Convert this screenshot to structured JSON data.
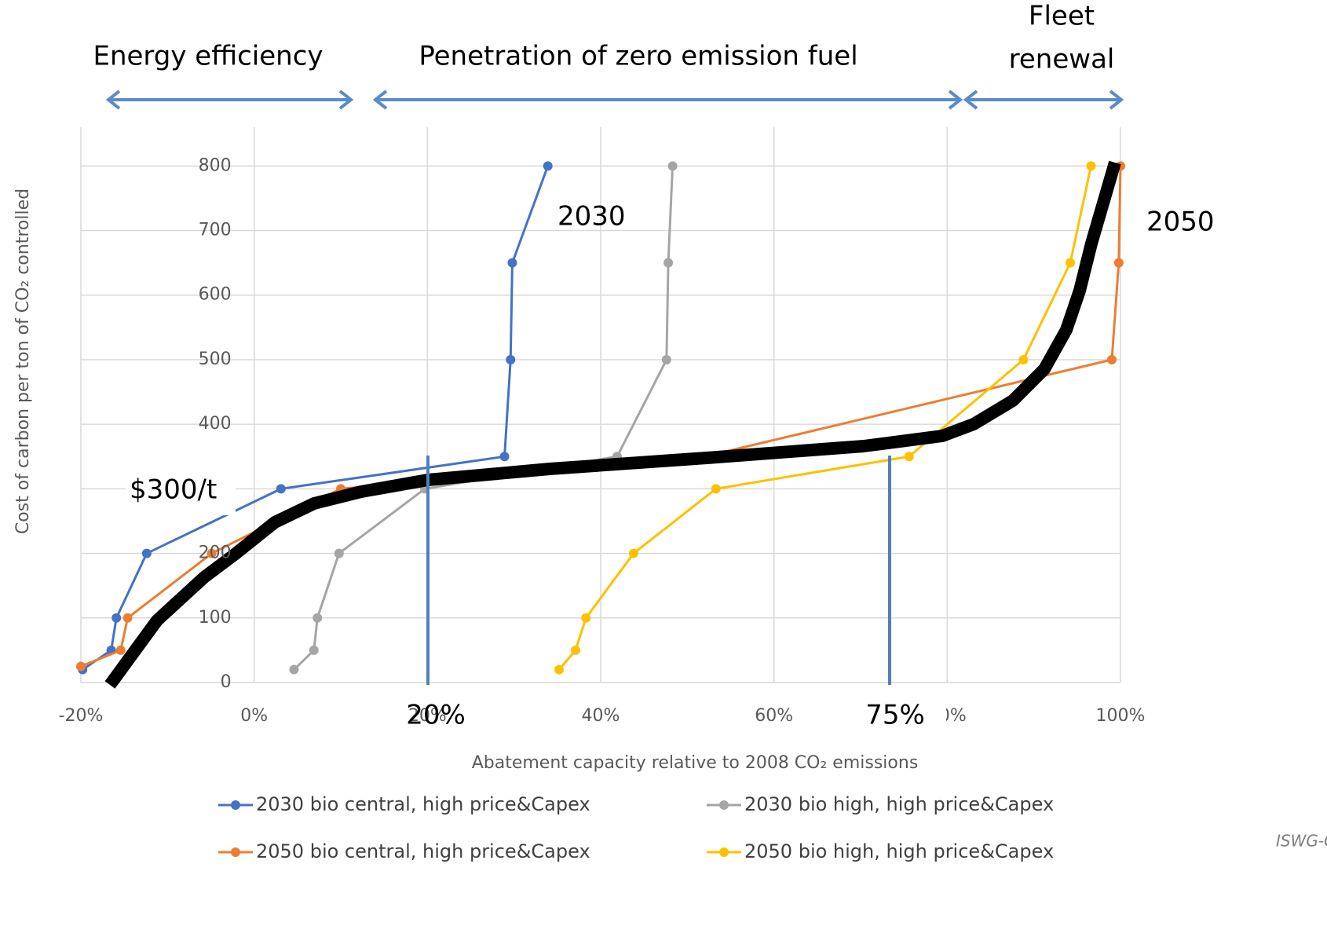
{
  "chart_data": {
    "type": "line",
    "x_label": "Abatement capacity relative to 2008 CO₂ emissions",
    "y_label": "Cost of carbon per ton of CO₂ controlled",
    "xlim": [
      -20,
      100
    ],
    "ylim": [
      0,
      860
    ],
    "xticks": [
      {
        "value": -20,
        "label": "-20%"
      },
      {
        "value": 0,
        "label": "0%"
      },
      {
        "value": 20,
        "label": "20%"
      },
      {
        "value": 40,
        "label": "40%"
      },
      {
        "value": 60,
        "label": "60%"
      },
      {
        "value": 80,
        "label": "80%"
      },
      {
        "value": 100,
        "label": "100%"
      }
    ],
    "yticks": [
      0,
      100,
      200,
      300,
      400,
      500,
      600,
      700,
      800
    ],
    "grid": true,
    "legend": "bottom",
    "series": [
      {
        "name": "2030 bio central, high price&Capex",
        "color": "#4472c4",
        "x": [
          -19.8,
          -16.5,
          -15.9,
          -12.4,
          3.1,
          28.9,
          29.6,
          29.8,
          33.9
        ],
        "values": [
          20,
          50,
          100,
          200,
          300,
          350,
          500,
          650,
          800
        ]
      },
      {
        "name": "2030 bio high, high price&Capex",
        "color": "#a5a5a5",
        "x": [
          4.6,
          6.9,
          7.3,
          9.8,
          19.7,
          41.9,
          47.6,
          47.8,
          48.3
        ],
        "values": [
          20,
          50,
          100,
          200,
          300,
          350,
          500,
          650,
          800
        ]
      },
      {
        "name": "2050 bio central, high price&Capex",
        "color": "#ed7d31",
        "x": [
          -20,
          -15.4,
          -14.6,
          -4.9,
          10,
          52,
          99,
          99.8,
          100
        ],
        "values": [
          25,
          50,
          100,
          200,
          300,
          350,
          500,
          650,
          800
        ]
      },
      {
        "name": "2050 bio high, high price&Capex",
        "color": "#ffc000",
        "x": [
          35.2,
          37.1,
          38.3,
          43.8,
          53.3,
          75.6,
          88.8,
          94.2,
          96.6
        ],
        "values": [
          20,
          50,
          100,
          200,
          300,
          350,
          500,
          650,
          800
        ]
      }
    ],
    "annotations": [
      "Energy efficiency",
      "Penetration of zero emission fuel",
      "Fleet",
      "renewal",
      "2030",
      "2050",
      "$300/t",
      "20%",
      "75%",
      "ISWG-GHG"
    ]
  }
}
